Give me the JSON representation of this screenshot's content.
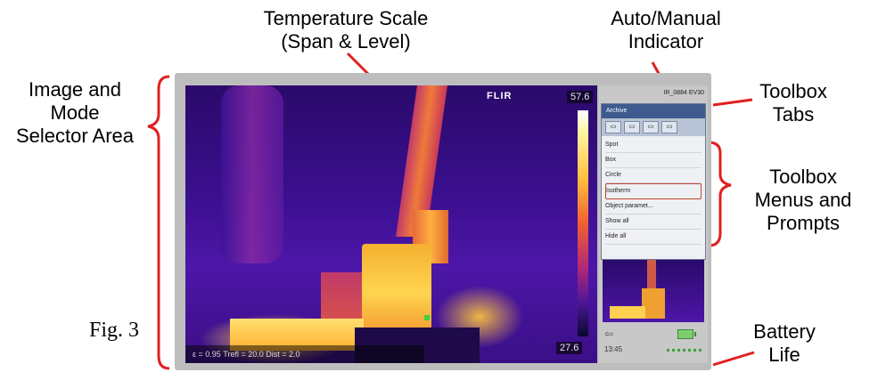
{
  "callouts": {
    "temperature_scale": [
      "Temperature Scale",
      "(Span & Level)"
    ],
    "auto_manual": [
      "Auto/Manual",
      "Indicator"
    ],
    "image_mode": [
      "Image and",
      "Mode",
      "Selector Area"
    ],
    "toolbox_tabs": [
      "Toolbox",
      "Tabs"
    ],
    "toolbox_menus": [
      "Toolbox",
      "Menus and",
      "Prompts"
    ],
    "battery": [
      "Battery",
      "Life"
    ]
  },
  "figure_label": "Fig. 3",
  "screen": {
    "logo": "FLIR",
    "scale_max": "57.6",
    "scale_min": "27.6",
    "status_line": "ε = 0.95  Trefl = 20.0  Dist = 2.0",
    "side_header": "IR_0884 EV30",
    "toolbox": {
      "title": "Archive",
      "tabs": [
        "▭",
        "▭",
        "▭",
        "▭"
      ],
      "menu": [
        "Spot",
        "Box",
        "Circle",
        "Isotherm",
        "Object paramet...",
        "Show all",
        "Hide all"
      ],
      "selected_index": 3
    },
    "footer_time": "13:45"
  },
  "colors": {
    "callout_line": "#e02020",
    "frame": "#bdbdbd"
  }
}
